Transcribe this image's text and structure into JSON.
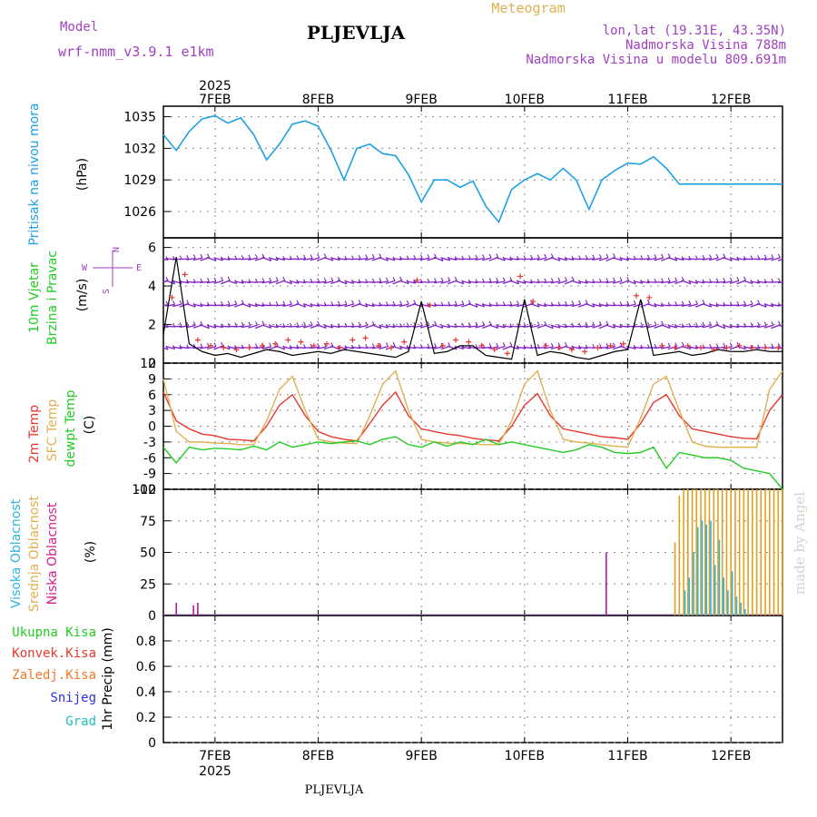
{
  "header": {
    "model_label": "Model",
    "model_name": "wrf-nmm_v3.9.1 e1km",
    "station": "PLJEVLJA",
    "meteogram": "Meteogram",
    "coords": "lon,lat (19.31E, 43.35N)",
    "elevation": "Nadmorska Visina 788m",
    "model_elevation": "Nadmorska Visina u modelu 809.691m",
    "footer_station": "PLJEVLJA",
    "watermark": "made by Angel"
  },
  "time_axis": {
    "year": "2025",
    "days": [
      "7FEB",
      "8FEB",
      "9FEB",
      "10FEB",
      "11FEB",
      "12FEB"
    ],
    "hours_range": [
      0,
      144
    ]
  },
  "labels": {
    "pressure": "Pritisak na nivou mora",
    "pressure_unit": "(hPa)",
    "wind1": "10m Vjetar",
    "wind2": "Brzina i Pravac",
    "wind_unit": "(m/s)",
    "compass_n": "N",
    "compass_w": "W",
    "compass_e": "E",
    "compass_s": "S",
    "temp2m": "2m Temp",
    "temp_sfc": "SFC Temp",
    "temp_dew": "dewpt Temp",
    "temp_unit": "(C)",
    "cloud_high": "Visoka Oblacnost",
    "cloud_mid": "Srednja Oblacnost",
    "cloud_low": "Niska Oblacnost",
    "cloud_unit": "(%)",
    "precip_total": "Ukupna Kisa",
    "precip_conv": "Konvek.Kisa",
    "precip_frz": "Zaledj.Kisa",
    "precip_snow": "Snijeg",
    "precip_grad": "Grad",
    "precip_unit": "1hr Precip (mm)"
  },
  "colors": {
    "pressure": "#1ea0e6",
    "temp2m": "#e8382e",
    "temp_sfc": "#e0b050",
    "dewpoint": "#22cc22",
    "wind_speed": "#000000",
    "wind_gust": "#e8382e",
    "wind_barb": "#8020c8",
    "cloud_high": "#30b4e0",
    "cloud_mid": "#e0a020",
    "cloud_low": "#b01aa0",
    "purple_text": "#a040c0",
    "orange_text": "#e0b050",
    "green_text": "#22cc22",
    "red_text": "#e8382e",
    "blue_text": "#1ea0e6",
    "magenta_text": "#d0208e",
    "precip_total_text": "#22cc22",
    "precip_conv_text": "#e8382e",
    "precip_frz_text": "#f07828",
    "precip_snow_text": "#3030e0",
    "precip_grad_text": "#20c0c0",
    "watermark": "#cfd6c8"
  },
  "chart_data": [
    {
      "type": "line",
      "ylim": [
        1023.5,
        1036
      ],
      "yticks": [
        1026,
        1029,
        1032,
        1035
      ],
      "series": [
        {
          "x": [
            0,
            3,
            6,
            9,
            12,
            15,
            18,
            21,
            24,
            27,
            30,
            33,
            36,
            39,
            42,
            45,
            48,
            51,
            54,
            57,
            60,
            63,
            66,
            69,
            72,
            75,
            78,
            81,
            84,
            87,
            90,
            93,
            96,
            99,
            102,
            105,
            108,
            111,
            114,
            117,
            120,
            123,
            126,
            129,
            132,
            135,
            138,
            141,
            144
          ],
          "y": [
            1033.3,
            1031.8,
            1033.6,
            1034.8,
            1035.1,
            1034.4,
            1034.9,
            1033.3,
            1030.9,
            1032.4,
            1034.3,
            1034.6,
            1034.1,
            1031.8,
            1029.0,
            1032.0,
            1032.4,
            1031.5,
            1031.3,
            1029.5,
            1026.9,
            1029.0,
            1029.0,
            1028.3,
            1028.9,
            1026.5,
            1025.0,
            1028.1,
            1029.0,
            1029.6,
            1029.0,
            1030.1,
            1029.0,
            1026.2,
            1029.0,
            1029.9,
            1030.6,
            1030.5,
            1031.2,
            1030.1,
            1028.6,
            1028.6,
            1028.6,
            1028.6,
            1028.6,
            1028.6,
            1028.6,
            1028.6,
            1028.6
          ]
        }
      ]
    },
    {
      "type": "line",
      "ylim": [
        0,
        6.5
      ],
      "yticks": [
        0,
        2,
        4,
        6
      ],
      "barb_levels": [
        0.8,
        1.9,
        3.0,
        4.2,
        5.4
      ],
      "series": [
        {
          "name": "speed",
          "x": [
            0,
            3,
            6,
            9,
            12,
            15,
            18,
            21,
            24,
            27,
            30,
            33,
            36,
            39,
            42,
            45,
            48,
            51,
            54,
            57,
            60,
            63,
            66,
            69,
            72,
            75,
            78,
            81,
            84,
            87,
            90,
            93,
            96,
            99,
            102,
            105,
            108,
            111,
            114,
            117,
            120,
            123,
            126,
            129,
            132,
            135,
            138,
            141,
            144
          ],
          "y": [
            1.5,
            5.5,
            1.0,
            0.6,
            0.4,
            0.5,
            0.3,
            0.5,
            0.7,
            0.6,
            0.4,
            0.5,
            0.6,
            0.5,
            0.7,
            0.6,
            0.5,
            0.4,
            0.3,
            0.6,
            3.2,
            0.5,
            0.6,
            0.9,
            0.9,
            0.4,
            0.3,
            0.2,
            3.3,
            0.4,
            0.6,
            0.5,
            0.3,
            0.2,
            0.4,
            0.6,
            0.7,
            3.3,
            0.4,
            0.5,
            0.6,
            0.4,
            0.5,
            0.7,
            0.6,
            0.6,
            0.7,
            0.6,
            0.6
          ]
        },
        {
          "name": "gust",
          "x": [
            2,
            5,
            8,
            11,
            14,
            17,
            20,
            23,
            26,
            29,
            32,
            35,
            38,
            41,
            44,
            47,
            50,
            53,
            56,
            59,
            62,
            65,
            68,
            71,
            74,
            77,
            80,
            83,
            86,
            89,
            92,
            95,
            98,
            101,
            104,
            107,
            110,
            113,
            116,
            119,
            122,
            125,
            128,
            131,
            134,
            137,
            140,
            143
          ],
          "y": [
            3.4,
            4.6,
            1.2,
            0.9,
            0.8,
            0.7,
            0.8,
            0.9,
            1.0,
            1.2,
            1.1,
            0.9,
            1.0,
            0.8,
            1.2,
            1.3,
            0.9,
            0.8,
            1.1,
            4.3,
            3.0,
            0.9,
            1.2,
            1.1,
            0.9,
            0.7,
            0.5,
            4.5,
            3.2,
            0.9,
            0.8,
            0.7,
            0.6,
            0.8,
            0.9,
            1.0,
            3.5,
            3.4,
            0.9,
            0.8,
            0.9,
            0.8,
            0.7,
            0.8,
            0.9,
            0.8,
            0.8,
            0.8
          ]
        }
      ]
    },
    {
      "type": "line",
      "ylim": [
        -12,
        12
      ],
      "yticks": [
        -12,
        -9,
        -6,
        -3,
        0,
        3,
        6,
        9,
        12
      ],
      "series": [
        {
          "name": "temp2m",
          "x": [
            0,
            3,
            6,
            9,
            12,
            15,
            18,
            21,
            24,
            27,
            30,
            33,
            36,
            39,
            42,
            45,
            48,
            51,
            54,
            57,
            60,
            63,
            66,
            69,
            72,
            75,
            78,
            81,
            84,
            87,
            90,
            93,
            96,
            99,
            102,
            105,
            108,
            111,
            114,
            117,
            120,
            123,
            126,
            129,
            132,
            135,
            138,
            141,
            144
          ],
          "y": [
            6.5,
            1.0,
            -0.5,
            -1.5,
            -1.8,
            -2.5,
            -2.6,
            -2.8,
            0.0,
            4.0,
            6.0,
            2.0,
            -1.0,
            -2.0,
            -2.5,
            -2.8,
            0.5,
            4.0,
            6.5,
            2.0,
            -0.5,
            -1.0,
            -1.5,
            -1.8,
            -2.3,
            -2.6,
            -2.8,
            0.0,
            4.0,
            6.2,
            2.0,
            -0.5,
            -1.0,
            -1.5,
            -2.0,
            -2.2,
            -2.5,
            0.5,
            4.5,
            6.0,
            2.0,
            -0.5,
            -1.0,
            -1.5,
            -2.0,
            -2.3,
            -2.4,
            3.0,
            6.0
          ]
        },
        {
          "name": "sfc",
          "x": [
            0,
            3,
            6,
            9,
            12,
            15,
            18,
            21,
            24,
            27,
            30,
            33,
            36,
            39,
            42,
            45,
            48,
            51,
            54,
            57,
            60,
            63,
            66,
            69,
            72,
            75,
            78,
            81,
            84,
            87,
            90,
            93,
            96,
            99,
            102,
            105,
            108,
            111,
            114,
            117,
            120,
            123,
            126,
            129,
            132,
            135,
            138,
            141,
            144
          ],
          "y": [
            9.0,
            -1.0,
            -3.0,
            -3.0,
            -3.2,
            -3.3,
            -3.5,
            -3.5,
            1.0,
            7.0,
            9.5,
            3.0,
            -2.5,
            -3.0,
            -3.2,
            -3.3,
            2.0,
            8.0,
            10.5,
            3.0,
            -2.5,
            -3.0,
            -3.2,
            -3.3,
            -3.4,
            -3.5,
            -3.5,
            1.0,
            8.0,
            10.5,
            3.0,
            -2.5,
            -3.0,
            -3.2,
            -3.5,
            -3.8,
            -4.0,
            1.5,
            8.0,
            9.5,
            3.0,
            -3.0,
            -3.8,
            -4.0,
            -4.0,
            -4.0,
            -4.0,
            7.0,
            10.5
          ]
        },
        {
          "name": "dewpoint",
          "x": [
            0,
            3,
            6,
            9,
            12,
            15,
            18,
            21,
            24,
            27,
            30,
            33,
            36,
            39,
            42,
            45,
            48,
            51,
            54,
            57,
            60,
            63,
            66,
            69,
            72,
            75,
            78,
            81,
            84,
            87,
            90,
            93,
            96,
            99,
            102,
            105,
            108,
            111,
            114,
            117,
            120,
            123,
            126,
            129,
            132,
            135,
            138,
            141,
            144
          ],
          "y": [
            -4.0,
            -7.0,
            -4.0,
            -4.5,
            -4.2,
            -4.3,
            -4.5,
            -3.8,
            -4.5,
            -3.0,
            -4.0,
            -3.5,
            -3.0,
            -3.3,
            -3.0,
            -2.8,
            -3.5,
            -2.5,
            -2.0,
            -3.5,
            -4.0,
            -3.0,
            -3.8,
            -3.0,
            -3.5,
            -2.5,
            -3.5,
            -3.0,
            -3.5,
            -4.0,
            -4.5,
            -5.0,
            -4.5,
            -3.5,
            -4.0,
            -5.0,
            -5.2,
            -5.0,
            -4.0,
            -8.0,
            -5.0,
            -5.5,
            -6.0,
            -6.0,
            -6.5,
            -8.0,
            -8.5,
            -9.0,
            -12.0
          ]
        }
      ]
    },
    {
      "type": "bar",
      "ylim": [
        0,
        100
      ],
      "yticks": [
        0,
        25,
        50,
        75,
        100
      ],
      "series": [
        {
          "name": "low",
          "x": [
            3,
            7,
            8,
            103
          ],
          "y": [
            10,
            8,
            10,
            50
          ]
        },
        {
          "name": "mid",
          "x": [
            119,
            120,
            121,
            122,
            123,
            124,
            125,
            126,
            127,
            128,
            129,
            130,
            131,
            132,
            133,
            134,
            135,
            136,
            137,
            138,
            139,
            140,
            141,
            142,
            143,
            144
          ],
          "y": [
            58,
            95,
            100,
            100,
            100,
            100,
            100,
            100,
            100,
            100,
            100,
            100,
            100,
            100,
            100,
            100,
            100,
            100,
            100,
            100,
            100,
            100,
            100,
            100,
            100,
            100
          ]
        },
        {
          "name": "high",
          "x": [
            121,
            122,
            123,
            124,
            125,
            126,
            127,
            128,
            129,
            130,
            131,
            132,
            133,
            134,
            135,
            136,
            137,
            138,
            139,
            140,
            141,
            142,
            143,
            144
          ],
          "y": [
            20,
            30,
            50,
            70,
            75,
            72,
            75,
            40,
            60,
            30,
            20,
            35,
            15,
            10,
            5,
            0,
            0,
            0,
            0,
            0,
            0,
            0,
            0,
            0
          ]
        }
      ]
    },
    {
      "type": "bar",
      "ylim": [
        0,
        1
      ],
      "yticks": [
        0,
        0.2,
        0.4,
        0.6,
        0.8
      ],
      "series": []
    }
  ]
}
